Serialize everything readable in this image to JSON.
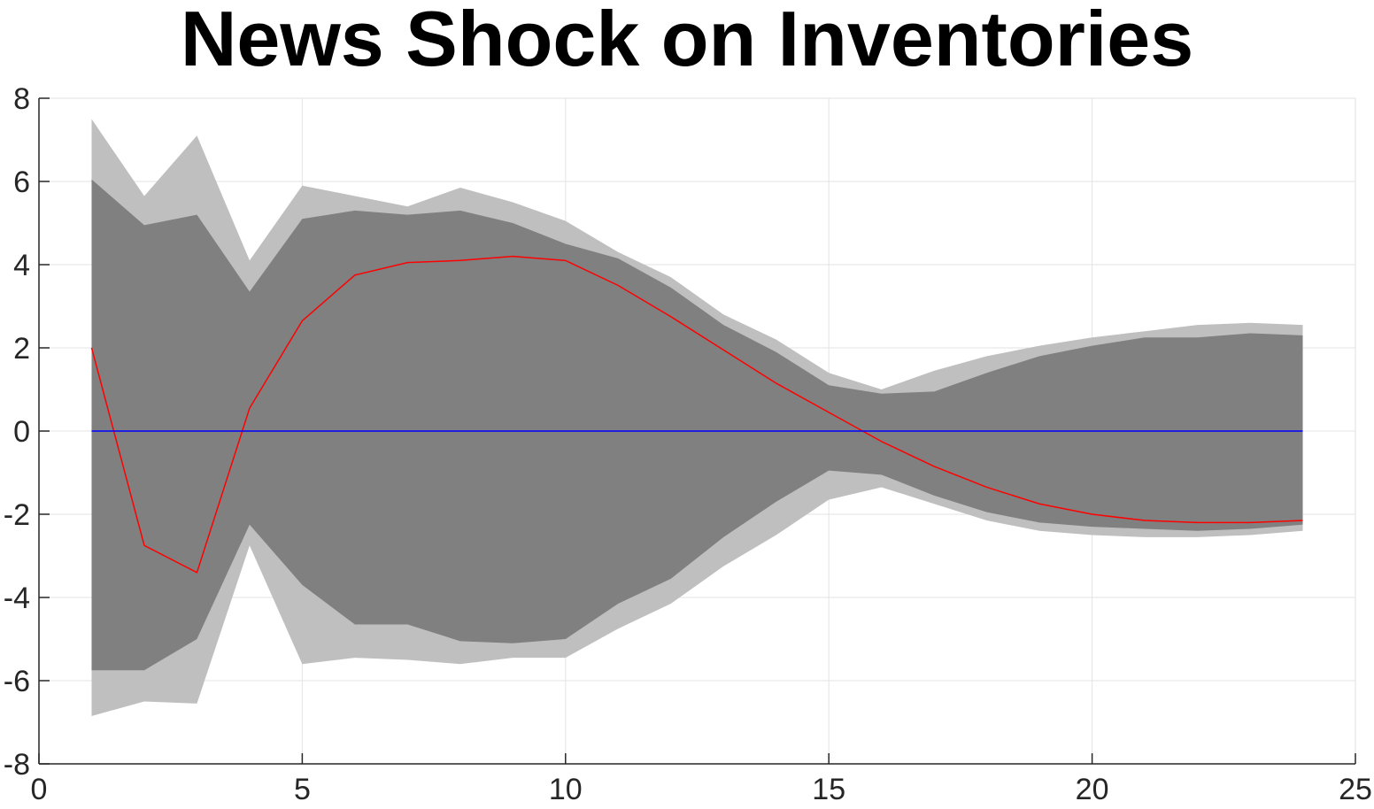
{
  "chart_data": {
    "type": "line",
    "title": "News Shock on Inventories",
    "xlabel": "",
    "ylabel": "",
    "xlim": [
      0,
      25
    ],
    "ylim": [
      -8,
      8
    ],
    "x_ticks": [
      0,
      5,
      10,
      15,
      20,
      25
    ],
    "y_ticks": [
      8,
      6,
      4,
      2,
      0,
      -2,
      -4,
      -6,
      -8
    ],
    "grid": true,
    "x": [
      1,
      2,
      3,
      4,
      5,
      6,
      7,
      8,
      9,
      10,
      11,
      12,
      13,
      14,
      15,
      16,
      17,
      18,
      19,
      20,
      21,
      22,
      23,
      24
    ],
    "bands": [
      {
        "color": "#bfbfbf",
        "upper": [
          7.5,
          5.65,
          7.1,
          4.1,
          5.9,
          5.65,
          5.4,
          5.85,
          5.5,
          5.05,
          4.3,
          3.7,
          2.8,
          2.2,
          1.4,
          1.0,
          1.45,
          1.8,
          2.05,
          2.25,
          2.4,
          2.55,
          2.6,
          2.55
        ],
        "lower": [
          -6.85,
          -6.5,
          -6.55,
          -2.75,
          -5.6,
          -5.45,
          -5.5,
          -5.6,
          -5.45,
          -5.45,
          -4.75,
          -4.15,
          -3.25,
          -2.5,
          -1.65,
          -1.35,
          -1.75,
          -2.15,
          -2.4,
          -2.5,
          -2.55,
          -2.55,
          -2.5,
          -2.4
        ]
      },
      {
        "color": "#808080",
        "upper": [
          6.05,
          4.95,
          5.2,
          3.35,
          5.1,
          5.3,
          5.2,
          5.3,
          5.0,
          4.5,
          4.15,
          3.45,
          2.55,
          1.9,
          1.1,
          0.9,
          0.95,
          1.4,
          1.8,
          2.05,
          2.25,
          2.25,
          2.35,
          2.3
        ],
        "lower": [
          -5.75,
          -5.75,
          -5.0,
          -2.25,
          -3.7,
          -4.65,
          -4.65,
          -5.05,
          -5.1,
          -5.0,
          -4.15,
          -3.55,
          -2.55,
          -1.7,
          -0.95,
          -1.05,
          -1.55,
          -1.95,
          -2.2,
          -2.3,
          -2.35,
          -2.4,
          -2.35,
          -2.25
        ]
      }
    ],
    "series": [
      {
        "color": "#ff0000",
        "values": [
          2.0,
          -2.75,
          -3.4,
          0.55,
          2.65,
          3.75,
          4.05,
          4.1,
          4.2,
          4.1,
          3.5,
          2.75,
          1.95,
          1.15,
          0.45,
          -0.25,
          -0.85,
          -1.35,
          -1.75,
          -2.0,
          -2.15,
          -2.2,
          -2.2,
          -2.15
        ]
      },
      {
        "color": "#0000ff",
        "values": [
          0,
          0,
          0,
          0,
          0,
          0,
          0,
          0,
          0,
          0,
          0,
          0,
          0,
          0,
          0,
          0,
          0,
          0,
          0,
          0,
          0,
          0,
          0,
          0
        ]
      }
    ]
  }
}
